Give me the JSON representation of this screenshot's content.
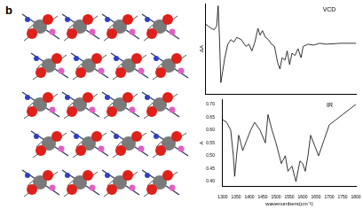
{
  "panel_label": "b",
  "chart_data": [
    {
      "type": "line",
      "y_label": "ΔA",
      "x": [
        1300,
        1310,
        1320,
        1330,
        1338,
        1343,
        1347,
        1352,
        1358,
        1365,
        1375,
        1385,
        1395,
        1405,
        1420,
        1435,
        1445,
        1455,
        1465,
        1475,
        1482,
        1490,
        1500,
        1510,
        1520,
        1530,
        1540,
        1548,
        1555,
        1565,
        1572,
        1580,
        1588,
        1598,
        1608,
        1618,
        1625,
        1640,
        1660,
        1680,
        1700,
        1750,
        1800
      ],
      "series": [
        {
          "name": "VCD",
          "color": "#000000",
          "values": [
            0.55,
            0.5,
            0.45,
            0.42,
            0.5,
            0.95,
            0.3,
            -0.75,
            -0.5,
            -0.2,
            0.1,
            0.2,
            0.15,
            0.25,
            0.2,
            0.05,
            0.1,
            -0.05,
            0.15,
            0.45,
            0.3,
            0.4,
            0.25,
            0.2,
            0.1,
            0.05,
            -0.3,
            -0.45,
            -0.2,
            -0.25,
            -0.05,
            -0.35,
            -0.1,
            -0.15,
            0.0,
            -0.2,
            0.05,
            0.1,
            0.08,
            0.12,
            0.1,
            0.12,
            0.12
          ]
        }
      ],
      "xlim": [
        1300,
        1800
      ],
      "ylim": [
        -1,
        1
      ],
      "grid": false,
      "tick_labels": false
    },
    {
      "type": "line",
      "x_label": "wavenumbers(cm⁻¹)",
      "y_label": "A",
      "x": [
        1300,
        1315,
        1330,
        1340,
        1345,
        1352,
        1360,
        1368,
        1375,
        1390,
        1405,
        1420,
        1440,
        1460,
        1470,
        1485,
        1500,
        1520,
        1535,
        1545,
        1560,
        1575,
        1590,
        1600,
        1610,
        1620,
        1630,
        1645,
        1660,
        1680,
        1700,
        1725,
        1750,
        1775,
        1800
      ],
      "series": [
        {
          "name": "IR",
          "color": "#000000",
          "values": [
            0.64,
            0.63,
            0.6,
            0.5,
            0.42,
            0.5,
            0.58,
            0.55,
            0.52,
            0.56,
            0.6,
            0.63,
            0.6,
            0.55,
            0.66,
            0.6,
            0.55,
            0.47,
            0.5,
            0.44,
            0.46,
            0.4,
            0.48,
            0.47,
            0.44,
            0.5,
            0.58,
            0.54,
            0.5,
            0.56,
            0.62,
            0.64,
            0.66,
            0.68,
            0.7
          ]
        }
      ],
      "xlim": [
        1300,
        1800
      ],
      "xticks": [
        1300,
        1350,
        1400,
        1450,
        1500,
        1550,
        1600,
        1650,
        1700,
        1750,
        1800
      ],
      "ylim": [
        0.38,
        0.72
      ],
      "yticks": [
        {
          "value": 0.4,
          "label": "0.40"
        },
        {
          "value": 0.45,
          "label": "0.45"
        },
        {
          "value": 0.5,
          "label": "0.50"
        },
        {
          "value": 0.55,
          "label": "0.55"
        },
        {
          "value": 0.6,
          "label": "0.60"
        },
        {
          "value": 0.65,
          "label": "0.65"
        },
        {
          "value": 0.7,
          "label": "0.70"
        }
      ],
      "grid": false
    }
  ]
}
